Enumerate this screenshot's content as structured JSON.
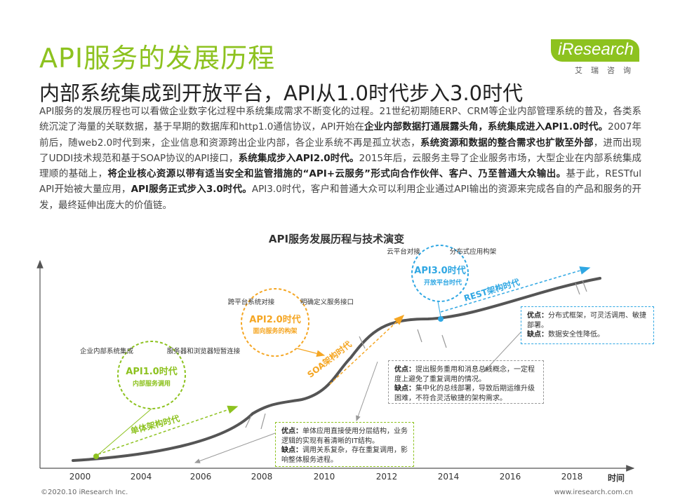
{
  "title": "API服务的发展历程",
  "subtitle": "内部系统集成到开放平台，API从1.0时代步入3.0时代",
  "logo": {
    "brand": "iResearch",
    "cn": "艾瑞咨询"
  },
  "body": {
    "s1": "API服务的发展历程也可以看做企业数字化过程中系统集成需求不断变化的过程。21世纪初期随ERP、CRM等企业内部管理系统的普及，各类系统沉淀了海量的关联数据，基于早期的数据库和http1.0通信协议，API开始在",
    "b1": "企业内部数据打通展露头角，系统集成进入API1.0时代。",
    "s2": "2007年前后，随web2.0时代到来，企业信息和资源跨出企业内部，各企业系统不再是孤立状态，",
    "b2": "系统资源和数据的整合需求也扩散至外部",
    "s3": "，进而出现了UDDI技术规范和基于SOAP协议的API接口，",
    "b3": "系统集成步入API2.0时代。",
    "s4": "2015年后，云服务主导了企业服务市场，大型企业在内部系统集成理顺的基础上，",
    "b4": "将企业核心资源以带有适当安全和监管措施的“API+云服务”形式向合作伙伴、客户、乃至普通大众输出。",
    "s5": "基于此，RESTful API开始被大量应用，",
    "b5": "API服务正式步入3.0时代。",
    "s6": "API3.0时代，客户和普通大众可以利用企业通过API输出的资源来完成各自的产品和服务的开发，最终延伸出庞大的价值链。"
  },
  "diagram": {
    "title": "API服务发展历程与技术演变",
    "axis_label": "时间",
    "years": [
      "2000",
      "2004",
      "2006",
      "2008",
      "2010",
      "2012",
      "2014",
      "2016",
      "2018"
    ],
    "eras": [
      {
        "name": "API1.0时代",
        "desc": "内部服务调用",
        "left_label": "企业内部系统集成",
        "right_label": "服务器和浏览器短暂连接",
        "color": "#8dc21f"
      },
      {
        "name": "API2.0时代",
        "desc": "面向服务的构架",
        "left_label": "跨平台系统对接",
        "right_label": "明确定义服务接口",
        "color": "#f5a623"
      },
      {
        "name": "API3.0时代",
        "desc": "开放平台时代",
        "left_label": "云平台对接",
        "right_label": "分布式应用构架",
        "color": "#2fa7e3"
      }
    ],
    "architectures": [
      "单体架构时代",
      "SOA架构时代",
      "REST架构时代"
    ],
    "notes": [
      {
        "pros_label": "优点：",
        "pros": "单体应用直接使用分层结构，业务逻辑的实现有着清晰的IT结构。",
        "cons_label": "缺点：",
        "cons": "调用关系复杂，存在重复调用，影响整体服务进程。"
      },
      {
        "pros_label": "优点：",
        "pros": "提出服务重用和消息总线概念，一定程度上避免了重复调用的情况。",
        "cons_label": "缺点：",
        "cons": "集中化的总线部署，导致后期运维升级困难，不符合灵活敏捷的架构需求。"
      },
      {
        "pros_label": "优点：",
        "pros": "分布式框架，可灵活调用、敏捷部署。",
        "cons_label": "缺点：",
        "cons": "数据安全性降低。"
      }
    ]
  },
  "footer": {
    "left": "©2020.10 iResearch Inc.",
    "right": "www.iresearch.com.cn"
  }
}
